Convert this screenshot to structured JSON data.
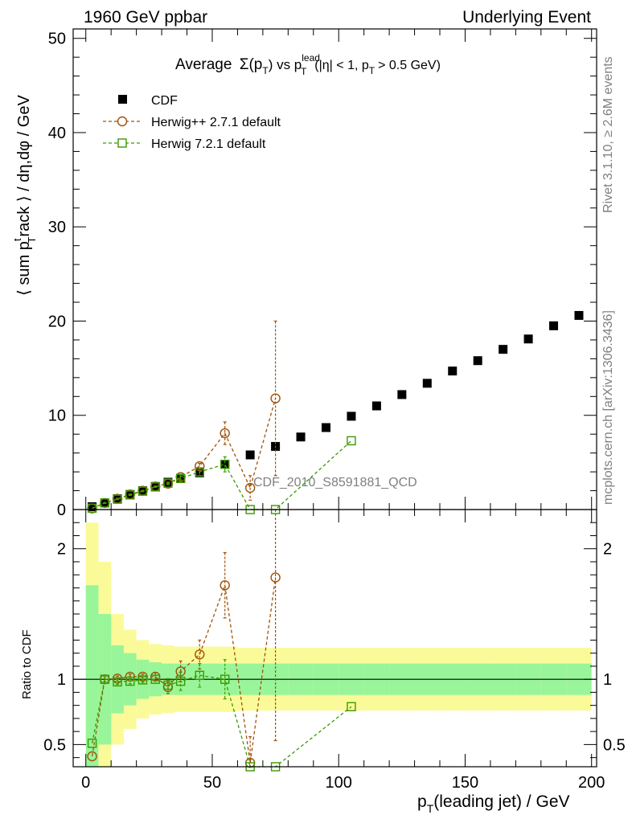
{
  "header": {
    "left": "1960 GeV ppbar",
    "right": "Underlying Event"
  },
  "side_labels": {
    "rivet": "Rivet 3.1.10, ≥ 2.6M events",
    "mcplots": "mcplots.cern.ch [arXiv:1306.3436]"
  },
  "chart_data": {
    "type": "scatter",
    "title": "Average Σ(pT) vs pT^lead (|η| < 1, pT > 0.5 GeV)",
    "title_parts": {
      "average": "Average",
      "sigma": "Σ(p",
      "sub_t": "T",
      "vs": ") vs p",
      "sup_lead": "lead",
      "cuts_a": "(|η| < 1, p",
      "cuts_b": "> 0.5 GeV)"
    },
    "watermark": "CDF_2010_S8591881_QCD",
    "ylabel_parts": {
      "a": "⟨ sum p",
      "sup_t": "t",
      "b": "rack ⟩ / dη,dφ / GeV"
    },
    "xlabel_parts": {
      "a": "p",
      "b": "(leading jet) / GeV"
    },
    "ratio_ylabel": "Ratio to CDF",
    "xlim": [
      -5,
      202
    ],
    "ylim": [
      0,
      51
    ],
    "ratio_ylim": [
      0.33,
      2.3
    ],
    "x_ticks": [
      "0",
      "50",
      "100",
      "150",
      "200"
    ],
    "y_ticks": [
      "0",
      "10",
      "20",
      "30",
      "40",
      "50"
    ],
    "ratio_ticks": [
      "0.5",
      "1",
      "2"
    ],
    "legend": [
      {
        "name": "CDF",
        "color": "#000000",
        "marker": "filled-square"
      },
      {
        "name": "Herwig++ 2.7.1 default",
        "color": "#a0520a",
        "marker": "open-circle"
      },
      {
        "name": "Herwig 7.2.1 default",
        "color": "#3a9a00",
        "marker": "open-square"
      }
    ],
    "series": [
      {
        "name": "CDF",
        "x": [
          2.5,
          7.5,
          12.5,
          17.5,
          22.5,
          27.5,
          32.5,
          37.5,
          45,
          55,
          65,
          75,
          85,
          95,
          105,
          115,
          125,
          135,
          145,
          155,
          165,
          175,
          185,
          195
        ],
        "y": [
          0.3,
          0.7,
          1.15,
          1.6,
          2.0,
          2.45,
          2.9,
          3.3,
          3.9,
          4.8,
          5.8,
          6.7,
          7.7,
          8.7,
          9.9,
          11.0,
          12.2,
          13.4,
          14.7,
          15.8,
          17.0,
          18.1,
          19.5,
          20.6
        ]
      },
      {
        "name": "Herwig++ 2.7.1 default",
        "x": [
          2.5,
          7.5,
          12.5,
          17.5,
          22.5,
          27.5,
          32.5,
          37.5,
          45,
          55,
          65,
          75
        ],
        "y": [
          0.12,
          0.7,
          1.15,
          1.6,
          2.0,
          2.45,
          2.75,
          3.45,
          4.6,
          8.1,
          2.3,
          11.8
        ],
        "err": [
          0,
          0.05,
          0.05,
          0.05,
          0.05,
          0.05,
          0.1,
          0.3,
          0.3,
          1.2,
          1.3,
          8.2
        ]
      },
      {
        "name": "Herwig 7.2.1 default",
        "x": [
          2.5,
          7.5,
          12.5,
          17.5,
          22.5,
          27.5,
          32.5,
          37.5,
          45,
          55,
          65,
          75,
          105
        ],
        "y": [
          0.15,
          0.7,
          1.1,
          1.55,
          1.95,
          2.4,
          2.8,
          3.3,
          4.0,
          4.8,
          0.0,
          0.0,
          7.3
        ],
        "err": [
          0,
          0.05,
          0.05,
          0.05,
          0.05,
          0.05,
          0.1,
          0.25,
          0.4,
          0.8,
          0,
          0,
          0
        ]
      }
    ],
    "ratio_series": [
      {
        "name": "Herwig++ 2.7.1 default",
        "x": [
          2.5,
          7.5,
          12.5,
          17.5,
          22.5,
          27.5,
          32.5,
          37.5,
          45,
          55,
          65,
          75
        ],
        "y": [
          0.41,
          1.0,
          1.005,
          1.02,
          1.02,
          1.02,
          0.94,
          1.06,
          1.19,
          1.72,
          0.36,
          1.78
        ],
        "err": [
          0,
          0.02,
          0.02,
          0.02,
          0.02,
          0.03,
          0.05,
          0.08,
          0.11,
          0.25,
          0.2,
          1.25
        ]
      },
      {
        "name": "Herwig 7.2.1 default",
        "x": [
          2.5,
          7.5,
          12.5,
          17.5,
          22.5,
          27.5,
          32.5,
          37.5,
          45,
          55,
          65,
          75,
          105
        ],
        "y": [
          0.51,
          1.0,
          0.98,
          0.985,
          0.995,
          1.0,
          0.955,
          0.985,
          1.03,
          1.0,
          0.0,
          0.0,
          0.79
        ],
        "err": [
          0,
          0.02,
          0.02,
          0.02,
          0.02,
          0.03,
          0.05,
          0.07,
          0.09,
          0.15,
          0,
          0,
          0
        ]
      }
    ],
    "ratio_band": {
      "x_edges": [
        0,
        5,
        10,
        15,
        20,
        25,
        30,
        35,
        40,
        50,
        60,
        70,
        80,
        90,
        100,
        110,
        120,
        130,
        140,
        150,
        160,
        170,
        180,
        190,
        200
      ],
      "inner": [
        0.72,
        0.5,
        0.26,
        0.2,
        0.15,
        0.13,
        0.12,
        0.12,
        0.12,
        0.12,
        0.12,
        0.12,
        0.12,
        0.12,
        0.12,
        0.12,
        0.12,
        0.12,
        0.12,
        0.12,
        0.12,
        0.12,
        0.12,
        0.12
      ],
      "outer": [
        1.2,
        0.9,
        0.5,
        0.38,
        0.3,
        0.27,
        0.26,
        0.25,
        0.25,
        0.25,
        0.24,
        0.24,
        0.24,
        0.24,
        0.24,
        0.24,
        0.24,
        0.24,
        0.24,
        0.24,
        0.24,
        0.24,
        0.24,
        0.24
      ],
      "inner_color": "#99f599",
      "outer_color": "#fafa99"
    }
  }
}
